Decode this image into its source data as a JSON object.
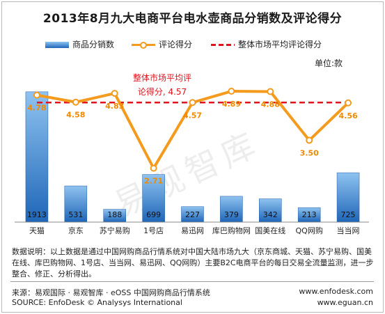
{
  "title": "2013年8月九大电商平台电水壶商品分销数及评论得分",
  "legend": {
    "bars": "商品分销数",
    "line": "评论得分",
    "avg": "整体市场平均评论得分"
  },
  "unit_label": "单位:款",
  "watermark": "易观智库",
  "chart_data": {
    "type": "bar",
    "title": "2013年8月九大电商平台电水壶商品分销数及评论得分",
    "categories": [
      "天猫",
      "京东",
      "苏宁易购",
      "1号店",
      "易迅网",
      "库巴购物网",
      "国美在线",
      "QQ网购",
      "当当网"
    ],
    "series": [
      {
        "name": "商品分销数",
        "type": "bar",
        "values": [
          1913,
          531,
          188,
          699,
          227,
          379,
          342,
          213,
          725
        ]
      },
      {
        "name": "评论得分",
        "type": "line",
        "values": [
          4.78,
          4.58,
          4.83,
          2.71,
          4.57,
          4.89,
          4.88,
          3.5,
          4.56
        ]
      }
    ],
    "reference_line": {
      "name": "整体市场平均评论得分",
      "value": 4.57
    },
    "reference_annotation": [
      "整体市场平均评",
      "论得分, 4.57"
    ],
    "bar_ylim": [
      0,
      2300
    ],
    "score_ylim": [
      1.5,
      5.6
    ],
    "grid": false,
    "legend_position": "top",
    "colors": {
      "bar_top": "#8fc3f0",
      "bar_bottom": "#1f66b8",
      "line": "#f49a1c",
      "avg": "#e0141e",
      "score_label": "#f08a00"
    }
  },
  "note": "数据说明：以上数据是通过中国网购商品行情系统对中国大陆市场九大（京东商城、天猫、苏宁易购、国美在线、库巴购物网、1号店、当当网、易迅网、QQ网购）主要B2C电商平台的每日交易全流量监测，进一步整合、修正、分析得出。",
  "footer": {
    "source_cn": "来源：易观国际 · 易观智库 · eOSS 中国网购商品行情系统",
    "source_en": "SOURCE: EnfoDesk © Analysys International",
    "url1": "www.enfodesk.com",
    "url2": "www.eguan.cn"
  }
}
